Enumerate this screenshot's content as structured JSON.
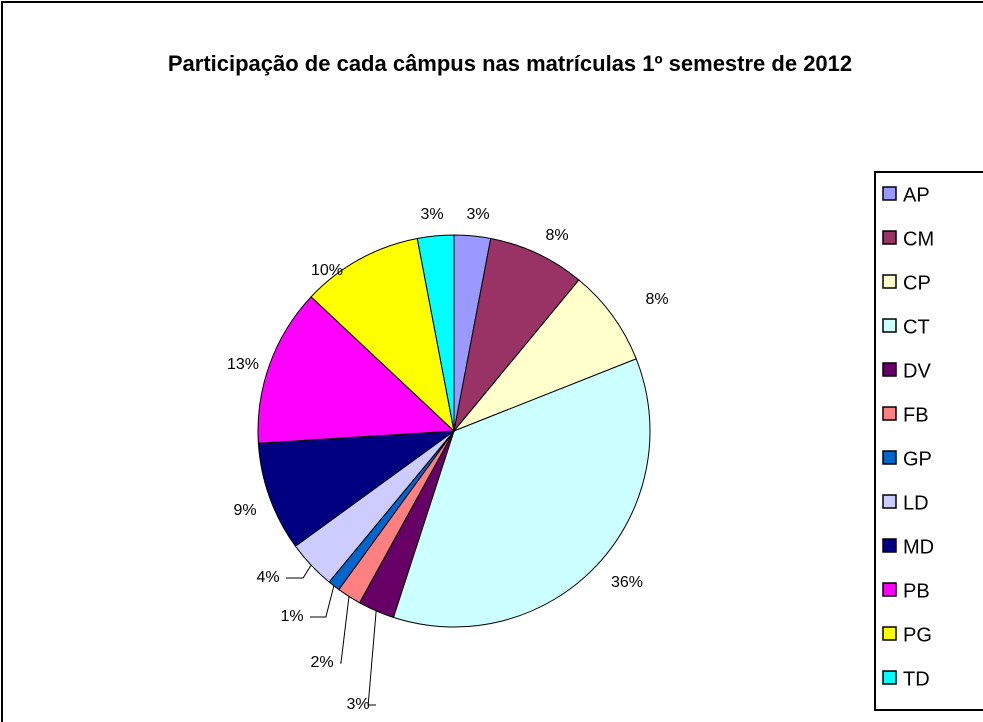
{
  "chart_data": {
    "type": "pie",
    "title": "Participação de cada câmpus nas matrículas 1º semestre de 2012",
    "categories": [
      "AP",
      "CM",
      "CP",
      "CT",
      "DV",
      "FB",
      "GP",
      "LD",
      "MD",
      "PB",
      "PG",
      "TD"
    ],
    "values": [
      3,
      8,
      8,
      36,
      3,
      2,
      1,
      4,
      9,
      13,
      10,
      3
    ],
    "value_labels": [
      "3%",
      "8%",
      "8%",
      "36%",
      "3%",
      "2%",
      "1%",
      "4%",
      "9%",
      "13%",
      "10%",
      "3%"
    ],
    "colors": [
      "#9999ff",
      "#993366",
      "#ffffcc",
      "#ccffff",
      "#660066",
      "#ff8080",
      "#0066cc",
      "#ccccff",
      "#000080",
      "#ff00ff",
      "#ffff00",
      "#00ffff"
    ],
    "legend": "right"
  }
}
